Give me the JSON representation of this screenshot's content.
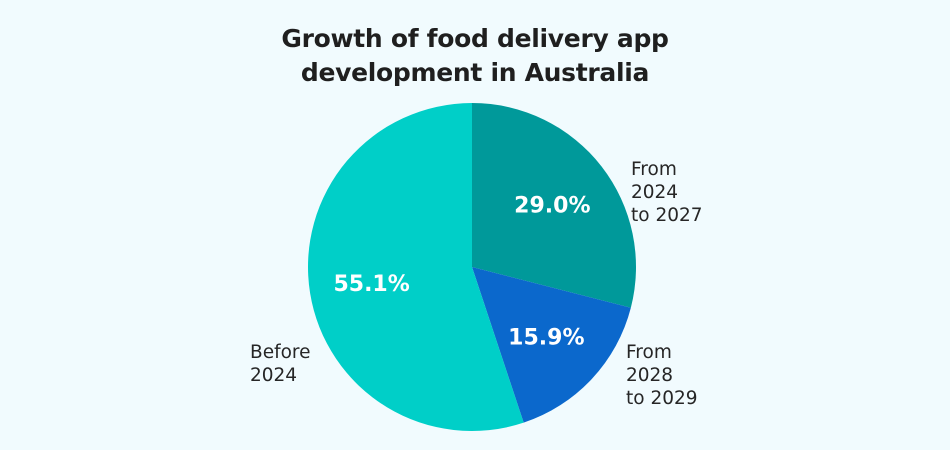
{
  "chart_data": {
    "type": "pie",
    "title_lines": [
      "Growth of food delivery app",
      "development in Australia"
    ],
    "slices": [
      {
        "label_lines": [
          "From",
          "2024",
          "to 2027"
        ],
        "value": 29.0,
        "display": "29.0%",
        "color": "#00999a"
      },
      {
        "label_lines": [
          "From",
          "2028",
          "to 2029"
        ],
        "value": 15.9,
        "display": "15.9%",
        "color": "#0b68cc"
      },
      {
        "label_lines": [
          "Before",
          "2024"
        ],
        "value": 55.1,
        "display": "55.1%",
        "color": "#00cfc8"
      }
    ],
    "start_angle_deg": 0,
    "direction": "clockwise",
    "legend": "none",
    "labels": "outside"
  }
}
